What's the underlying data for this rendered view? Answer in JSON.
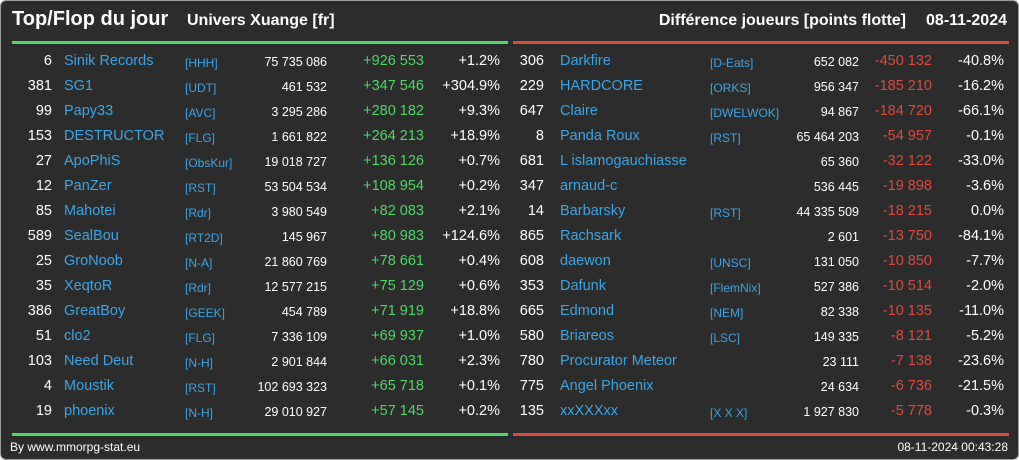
{
  "header": {
    "title": "Top/Flop du jour",
    "universe": "Univers Xuange [fr]",
    "metric": "Différence joueurs [points flotte]",
    "date": "08-11-2024"
  },
  "colors": {
    "positive": "#4cd964",
    "negative": "#e0483e",
    "link": "#3aa5e8",
    "background": "#2c2c2c"
  },
  "top": [
    {
      "rank": "6",
      "name": "Sinik Records",
      "alliance": "[HHH]",
      "points": "75 735 086",
      "diff": "+926 553",
      "pct": "+1.2%"
    },
    {
      "rank": "381",
      "name": "SG1",
      "alliance": "[UDT]",
      "points": "461 532",
      "diff": "+347 546",
      "pct": "+304.9%"
    },
    {
      "rank": "99",
      "name": "Papy33",
      "alliance": "[AVC]",
      "points": "3 295 286",
      "diff": "+280 182",
      "pct": "+9.3%"
    },
    {
      "rank": "153",
      "name": "DESTRUCTOR",
      "alliance": "[FLG]",
      "points": "1 661 822",
      "diff": "+264 213",
      "pct": "+18.9%"
    },
    {
      "rank": "27",
      "name": "ApoPhiS",
      "alliance": "[ObsKur]",
      "points": "19 018 727",
      "diff": "+136 126",
      "pct": "+0.7%"
    },
    {
      "rank": "12",
      "name": "PanZer",
      "alliance": "[RST]",
      "points": "53 504 534",
      "diff": "+108 954",
      "pct": "+0.2%"
    },
    {
      "rank": "85",
      "name": "Mahotei",
      "alliance": "[Rdr]",
      "points": "3 980 549",
      "diff": "+82 083",
      "pct": "+2.1%"
    },
    {
      "rank": "589",
      "name": "SealBou",
      "alliance": "[RT2D]",
      "points": "145 967",
      "diff": "+80 983",
      "pct": "+124.6%"
    },
    {
      "rank": "25",
      "name": "GroNoob",
      "alliance": "[N-A]",
      "points": "21 860 769",
      "diff": "+78 661",
      "pct": "+0.4%"
    },
    {
      "rank": "35",
      "name": "XeqtoR",
      "alliance": "[Rdr]",
      "points": "12 577 215",
      "diff": "+75 129",
      "pct": "+0.6%"
    },
    {
      "rank": "386",
      "name": "GreatBoy",
      "alliance": "[GEEK]",
      "points": "454 789",
      "diff": "+71 919",
      "pct": "+18.8%"
    },
    {
      "rank": "51",
      "name": "clo2",
      "alliance": "[FLG]",
      "points": "7 336 109",
      "diff": "+69 937",
      "pct": "+1.0%"
    },
    {
      "rank": "103",
      "name": "Need Deut",
      "alliance": "[N-H]",
      "points": "2 901 844",
      "diff": "+66 031",
      "pct": "+2.3%"
    },
    {
      "rank": "4",
      "name": "Moustik",
      "alliance": "[RST]",
      "points": "102 693 323",
      "diff": "+65 718",
      "pct": "+0.1%"
    },
    {
      "rank": "19",
      "name": "phoenix",
      "alliance": "[N-H]",
      "points": "29 010 927",
      "diff": "+57 145",
      "pct": "+0.2%"
    }
  ],
  "flop": [
    {
      "rank": "306",
      "name": "Darkfire",
      "alliance": "[D-Eats]",
      "points": "652 082",
      "diff": "-450 132",
      "pct": "-40.8%"
    },
    {
      "rank": "229",
      "name": "HARDCORE",
      "alliance": "[ORKS]",
      "points": "956 347",
      "diff": "-185 210",
      "pct": "-16.2%"
    },
    {
      "rank": "647",
      "name": "Claire",
      "alliance": "[DWELWOK]",
      "points": "94 867",
      "diff": "-184 720",
      "pct": "-66.1%"
    },
    {
      "rank": "8",
      "name": "Panda Roux",
      "alliance": "[RST]",
      "points": "65 464 203",
      "diff": "-54 957",
      "pct": "-0.1%"
    },
    {
      "rank": "681",
      "name": "L islamogauchiasse",
      "alliance": "",
      "points": "65 360",
      "diff": "-32 122",
      "pct": "-33.0%"
    },
    {
      "rank": "347",
      "name": "arnaud-c",
      "alliance": "",
      "points": "536 445",
      "diff": "-19 898",
      "pct": "-3.6%"
    },
    {
      "rank": "14",
      "name": "Barbarsky",
      "alliance": "[RST]",
      "points": "44 335 509",
      "diff": "-18 215",
      "pct": "0.0%"
    },
    {
      "rank": "865",
      "name": "Rachsark",
      "alliance": "",
      "points": "2 601",
      "diff": "-13 750",
      "pct": "-84.1%"
    },
    {
      "rank": "608",
      "name": "daewon",
      "alliance": "[UNSC]",
      "points": "131 050",
      "diff": "-10 850",
      "pct": "-7.7%"
    },
    {
      "rank": "353",
      "name": "Dafunk",
      "alliance": "[FlemNix]",
      "points": "527 386",
      "diff": "-10 514",
      "pct": "-2.0%"
    },
    {
      "rank": "665",
      "name": "Edmond",
      "alliance": "[NEM]",
      "points": "82 338",
      "diff": "-10 135",
      "pct": "-11.0%"
    },
    {
      "rank": "580",
      "name": "Briareos",
      "alliance": "[LSC]",
      "points": "149 335",
      "diff": "-8 121",
      "pct": "-5.2%"
    },
    {
      "rank": "780",
      "name": "Procurator Meteor",
      "alliance": "",
      "points": "23 111",
      "diff": "-7 138",
      "pct": "-23.6%"
    },
    {
      "rank": "775",
      "name": "Angel Phoenix",
      "alliance": "",
      "points": "24 634",
      "diff": "-6 736",
      "pct": "-21.5%"
    },
    {
      "rank": "135",
      "name": "xxXXXxx",
      "alliance": "[X X X]",
      "points": "1 927 830",
      "diff": "-5 778",
      "pct": "-0.3%"
    }
  ],
  "footer": {
    "source": "By www.mmorpg-stat.eu",
    "timestamp": "08-11-2024 00:43:28"
  }
}
